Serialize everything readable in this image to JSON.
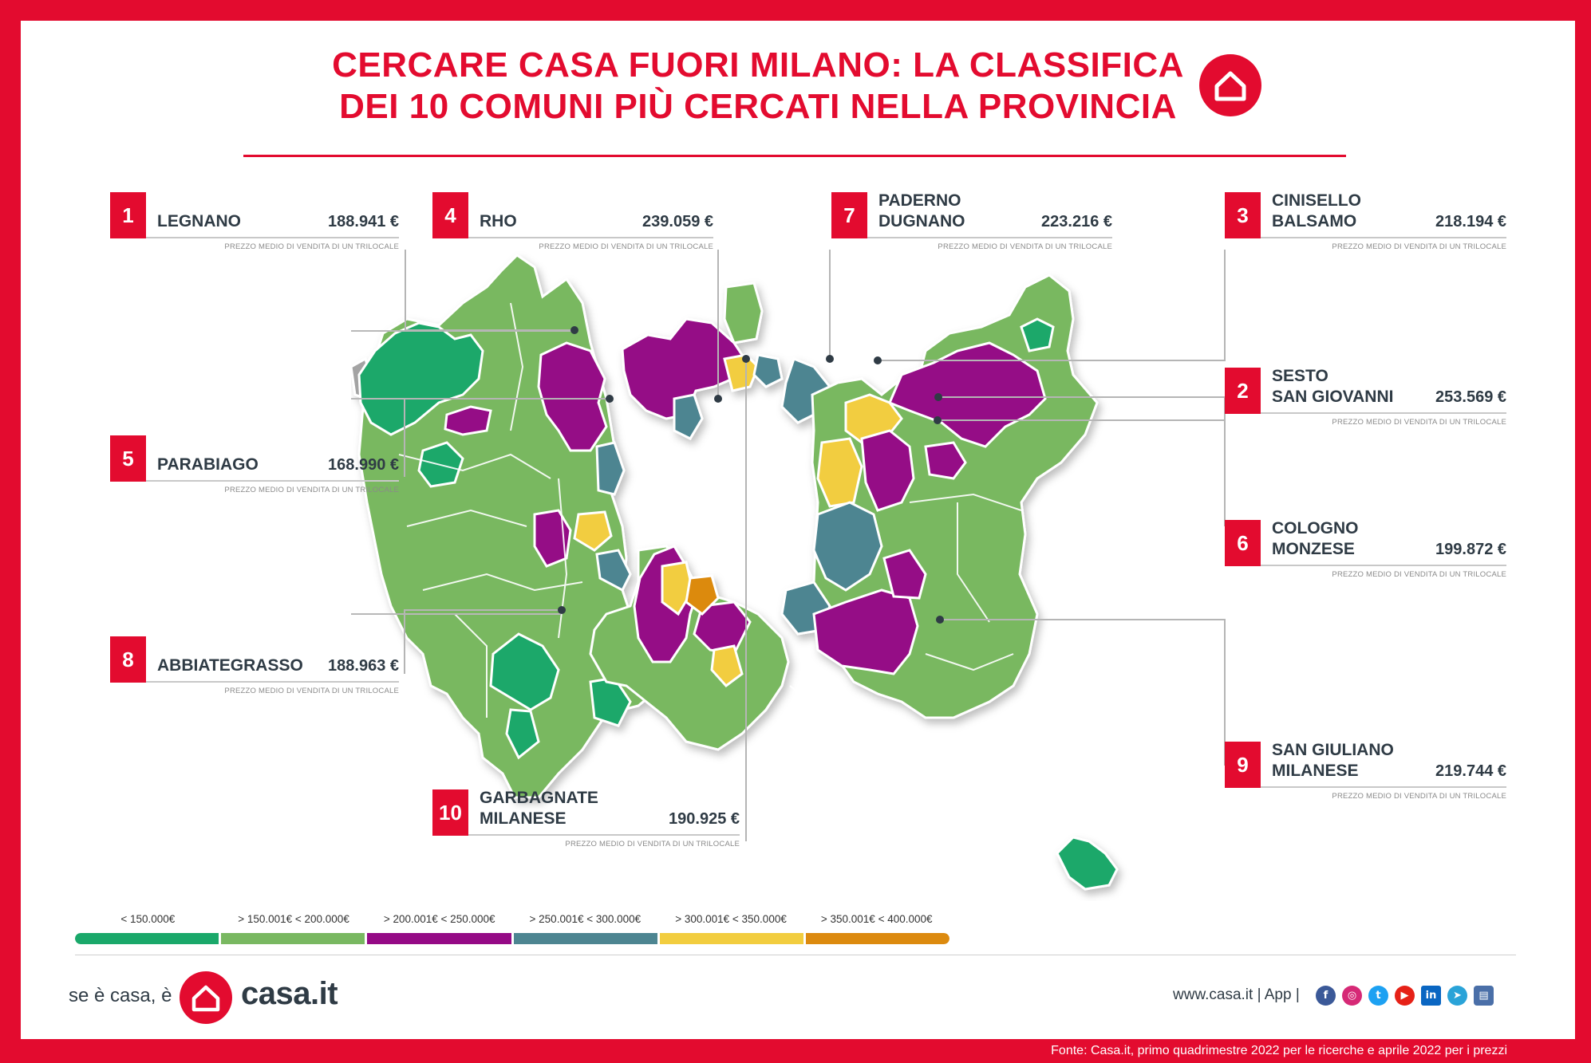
{
  "title": {
    "line1": "CERCARE CASA FUORI MILANO: LA CLASSIFICA",
    "line2": "DEI 10 COMUNI PIÙ CERCATI NELLA PROVINCIA",
    "icon": "house-icon"
  },
  "subtitle_note": "PREZZO MEDIO DI VENDITA DI UN TRILOCALE",
  "rankings": [
    {
      "rank": "1",
      "name": "LEGNANO",
      "price": "188.941 €"
    },
    {
      "rank": "2",
      "name": "SESTO\nSAN GIOVANNI",
      "price": "253.569 €"
    },
    {
      "rank": "3",
      "name": "CINISELLO\nBALSAMO",
      "price": "218.194 €"
    },
    {
      "rank": "4",
      "name": "RHO",
      "price": "239.059 €"
    },
    {
      "rank": "5",
      "name": "PARABIAGO",
      "price": "168.990 €"
    },
    {
      "rank": "6",
      "name": "COLOGNO\nMONZESE",
      "price": "199.872 €"
    },
    {
      "rank": "7",
      "name": "PADERNO\nDUGNANO",
      "price": "223.216 €"
    },
    {
      "rank": "8",
      "name": "ABBIATEGRASSO",
      "price": "188.963 €"
    },
    {
      "rank": "9",
      "name": "SAN GIULIANO\nMILANESE",
      "price": "219.744 €"
    },
    {
      "rank": "10",
      "name": "GARBAGNATE\nMILANESE",
      "price": "190.925 €"
    }
  ],
  "legend": [
    {
      "label": "< 150.000€",
      "color": "#1aa86a"
    },
    {
      "label": "> 150.001€ < 200.000€",
      "color": "#79b861"
    },
    {
      "label": "> 200.001€ < 250.000€",
      "color": "#950a86"
    },
    {
      "label": "> 250.001€ < 300.000€",
      "color": "#4d8591"
    },
    {
      "label": "> 300.001€ < 350.000€",
      "color": "#f2cd3f"
    },
    {
      "label": "> 350.001€ < 400.000€",
      "color": "#dc8a0f"
    }
  ],
  "footer": {
    "slogan": "se è casa, è",
    "logo": "casa.it",
    "site": "www.casa.it | App |",
    "socials": [
      "facebook-icon",
      "instagram-icon",
      "twitter-icon",
      "youtube-icon",
      "linkedin-icon",
      "telegram-icon",
      "news-icon"
    ],
    "source": "Fonte: Casa.it, primo quadrimestre 2022 per le ricerche e aprile 2022 per i prezzi"
  },
  "colors": {
    "brand_red": "#e30b2f",
    "text_dark": "#2f3b45"
  }
}
